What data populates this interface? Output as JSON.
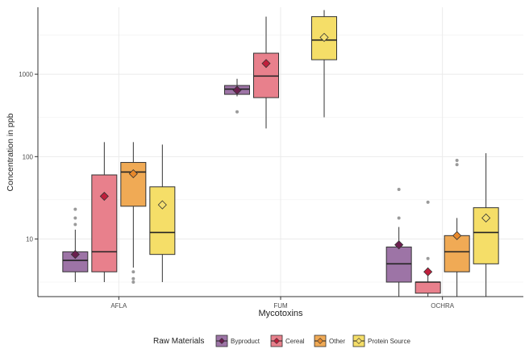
{
  "chart_data": {
    "type": "box",
    "xlabel": "Mycotoxins",
    "ylabel": "Concentration in ppb",
    "yscale": "log10",
    "ylim": [
      2,
      6500
    ],
    "yticks": [
      10,
      100,
      1000
    ],
    "ytick_labels": [
      "10",
      "100",
      "1000"
    ],
    "grid": true,
    "categories": [
      "AFLA",
      "FUM",
      "OCHRA"
    ],
    "legend": {
      "title": "Raw Materials",
      "position": "bottom",
      "entries": [
        "Byproduct",
        "Cereal",
        "Other",
        "Protein Source"
      ]
    },
    "colors": [
      "#9d74a6",
      "#e8808c",
      "#f0aa55",
      "#f5de68"
    ],
    "mean_colors": [
      "#6b1f4f",
      "#c01f3c",
      "#e8882a",
      "#f5e070"
    ],
    "series": [
      {
        "name": "Byproduct",
        "groups": [
          {
            "category": "AFLA",
            "whisker_low": 3,
            "q1": 4,
            "median": 5.5,
            "q3": 7,
            "whisker_high": 13,
            "mean": 6.5,
            "outliers": [
              15,
              18,
              23
            ]
          },
          {
            "category": "FUM",
            "whisker_low": 540,
            "q1": 570,
            "median": 660,
            "q3": 730,
            "whisker_high": 880,
            "mean": 640,
            "outliers": [
              350
            ]
          },
          {
            "category": "OCHRA",
            "whisker_low": 2,
            "q1": 3,
            "median": 5,
            "q3": 8,
            "whisker_high": 14,
            "mean": 8.5,
            "outliers": [
              18,
              40
            ]
          }
        ]
      },
      {
        "name": "Cereal",
        "groups": [
          {
            "category": "AFLA",
            "whisker_low": 3,
            "q1": 4,
            "median": 7,
            "q3": 60,
            "whisker_high": 150,
            "mean": 33,
            "outliers": []
          },
          {
            "category": "FUM",
            "whisker_low": 220,
            "q1": 520,
            "median": 950,
            "q3": 1800,
            "whisker_high": 5000,
            "mean": 1350,
            "outliers": []
          },
          {
            "category": "OCHRA",
            "whisker_low": 2,
            "q1": 2.2,
            "median": 3,
            "q3": 3,
            "whisker_high": 4.5,
            "mean": 4,
            "outliers": [
              5.8,
              28
            ]
          }
        ]
      },
      {
        "name": "Other",
        "groups": [
          {
            "category": "AFLA",
            "whisker_low": 4.5,
            "q1": 25,
            "median": 65,
            "q3": 85,
            "whisker_high": 150,
            "mean": 62,
            "outliers": [
              3,
              3.3,
              4
            ]
          },
          {
            "category": "FUM",
            "whisker_low": null,
            "q1": null,
            "median": null,
            "q3": null,
            "whisker_high": null,
            "mean": null,
            "outliers": []
          },
          {
            "category": "OCHRA",
            "whisker_low": 2,
            "q1": 4,
            "median": 7,
            "q3": 11,
            "whisker_high": 18,
            "mean": 11,
            "outliers": [
              80,
              90
            ]
          }
        ]
      },
      {
        "name": "Protein Source",
        "groups": [
          {
            "category": "AFLA",
            "whisker_low": 3,
            "q1": 6.5,
            "median": 12,
            "q3": 43,
            "whisker_high": 140,
            "mean": 26,
            "outliers": []
          },
          {
            "category": "FUM",
            "whisker_low": 300,
            "q1": 1500,
            "median": 2600,
            "q3": 5000,
            "whisker_high": 6000,
            "mean": 2800,
            "outliers": []
          },
          {
            "category": "OCHRA",
            "whisker_low": 2,
            "q1": 5,
            "median": 12,
            "q3": 24,
            "whisker_high": 110,
            "mean": 18,
            "outliers": []
          }
        ]
      }
    ]
  }
}
